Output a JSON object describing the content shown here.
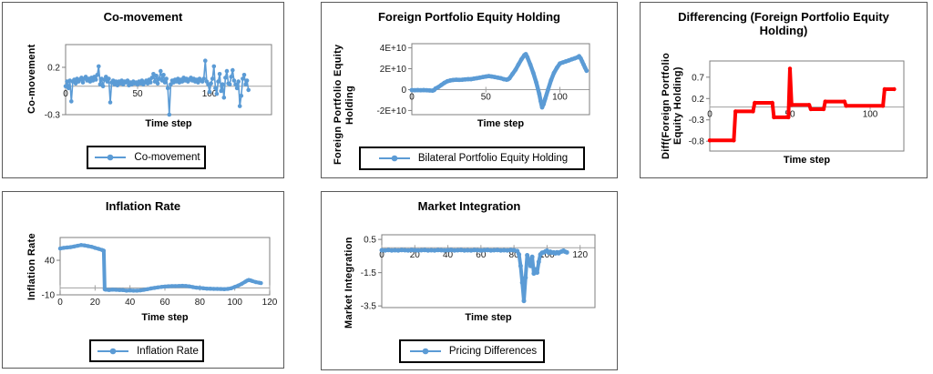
{
  "colors": {
    "series_blue": "#5b9bd5",
    "series_red": "#ff0000",
    "gridline": "#a0a0a0",
    "plot_border": "#7f7f7f",
    "tick_text": "#1a1a1a",
    "legend_border": "#000000"
  },
  "chart_data": [
    {
      "type": "line",
      "title": "Co-movement",
      "y_axis_title": "Co-movement",
      "x_axis_title": "Time step",
      "legend": "Co-movement",
      "series_color": "series_blue",
      "line_width": 1.6,
      "marker_r": 2.3,
      "xlim": [
        0,
        143
      ],
      "ylim": [
        -0.3,
        0.44
      ],
      "yticks": [
        {
          "v": 0.2,
          "label": "0.2"
        },
        {
          "v": -0.3,
          "label": "-0.3"
        }
      ],
      "xticks": [
        {
          "v": 0,
          "label": "0"
        },
        {
          "v": 50,
          "label": "50"
        },
        {
          "v": 100,
          "label": "100"
        }
      ],
      "x_step": 1,
      "y": [
        0.0,
        0.05,
        -0.02,
        0.06,
        -0.16,
        0.05,
        0.07,
        0.03,
        0.08,
        0.05,
        0.07,
        0.09,
        0.04,
        0.08,
        0.1,
        0.06,
        0.08,
        0.05,
        0.09,
        0.06,
        0.1,
        0.07,
        0.12,
        0.21,
        0.02,
        0.08,
        0.0,
        0.07,
        0.1,
        0.05,
        0.08,
        -0.17,
        0.04,
        0.06,
        0.02,
        0.05,
        0.01,
        0.05,
        0.03,
        0.06,
        0.02,
        0.05,
        0.04,
        0.06,
        0.01,
        0.04,
        0.02,
        0.05,
        0.03,
        0.04,
        0.02,
        0.05,
        0.03,
        0.06,
        0.02,
        0.04,
        0.06,
        0.03,
        0.07,
        0.04,
        0.09,
        0.13,
        0.05,
        0.11,
        0.03,
        0.08,
        0.16,
        0.06,
        0.12,
        0.04,
        0.08,
        -0.02,
        -0.3,
        0.02,
        0.06,
        0.04,
        0.07,
        0.05,
        0.08,
        0.04,
        0.07,
        0.05,
        0.09,
        0.06,
        0.08,
        0.05,
        0.07,
        0.09,
        0.06,
        0.08,
        0.05,
        0.07,
        0.04,
        0.08,
        0.06,
        0.05,
        0.08,
        0.27,
        0.05,
        0.02,
        -0.06,
        0.03,
        0.08,
        0.21,
        -0.02,
        -0.08,
        0.05,
        0.13,
        -0.05,
        0.02,
        -0.12,
        0.09,
        0.16,
        0.03,
        0.02,
        0.1,
        0.17,
        0.06,
        0.02,
        -0.02,
        0.05,
        -0.21,
        -0.1,
        0.08,
        0.12,
        0.02,
        0.06,
        -0.04
      ]
    },
    {
      "type": "line",
      "title": "Foreign Portfolio Equity Holding",
      "y_axis_title": "Foreign  Portfolio Equity Holding",
      "x_axis_title": "Time step",
      "legend": "Bilateral Portfolio Equity Holding",
      "series_color": "series_blue",
      "line_width": 4.5,
      "marker_r": 2.4,
      "xlim": [
        0,
        120
      ],
      "ylim": [
        -2.4,
        4.4
      ],
      "y_unit": "1E+10",
      "yticks": [
        {
          "v": 4,
          "label": "4E+10"
        },
        {
          "v": 2,
          "label": "2E+10"
        },
        {
          "v": 0,
          "label": "0"
        },
        {
          "v": -2,
          "label": "-2E+10"
        }
      ],
      "xticks": [
        {
          "v": 0,
          "label": "0"
        },
        {
          "v": 50,
          "label": "50"
        },
        {
          "v": 100,
          "label": "100"
        }
      ],
      "data": [
        [
          0,
          -0.05
        ],
        [
          2,
          -0.06
        ],
        [
          4,
          -0.05
        ],
        [
          6,
          -0.06
        ],
        [
          8,
          -0.05
        ],
        [
          10,
          -0.06
        ],
        [
          12,
          -0.08
        ],
        [
          14,
          -0.1
        ],
        [
          15,
          -0.05
        ],
        [
          16,
          0.1
        ],
        [
          18,
          0.25
        ],
        [
          20,
          0.45
        ],
        [
          22,
          0.65
        ],
        [
          24,
          0.8
        ],
        [
          26,
          0.88
        ],
        [
          28,
          0.92
        ],
        [
          30,
          0.95
        ],
        [
          32,
          0.93
        ],
        [
          34,
          0.95
        ],
        [
          36,
          0.97
        ],
        [
          38,
          1.0
        ],
        [
          40,
          1.0
        ],
        [
          42,
          1.05
        ],
        [
          44,
          1.1
        ],
        [
          46,
          1.15
        ],
        [
          48,
          1.2
        ],
        [
          50,
          1.25
        ],
        [
          52,
          1.3
        ],
        [
          54,
          1.25
        ],
        [
          56,
          1.2
        ],
        [
          58,
          1.15
        ],
        [
          60,
          1.1
        ],
        [
          62,
          1.0
        ],
        [
          64,
          0.95
        ],
        [
          65,
          0.98
        ],
        [
          66,
          1.1
        ],
        [
          68,
          1.5
        ],
        [
          70,
          1.9
        ],
        [
          72,
          2.4
        ],
        [
          74,
          2.9
        ],
        [
          76,
          3.3
        ],
        [
          77,
          3.4
        ],
        [
          78,
          3.1
        ],
        [
          80,
          2.4
        ],
        [
          82,
          1.6
        ],
        [
          84,
          0.7
        ],
        [
          86,
          -0.4
        ],
        [
          87,
          -1.1
        ],
        [
          88,
          -1.7
        ],
        [
          89,
          -1.4
        ],
        [
          90,
          -0.9
        ],
        [
          92,
          0.0
        ],
        [
          94,
          0.9
        ],
        [
          96,
          1.6
        ],
        [
          98,
          2.1
        ],
        [
          100,
          2.5
        ],
        [
          102,
          2.6
        ],
        [
          104,
          2.7
        ],
        [
          106,
          2.8
        ],
        [
          108,
          2.9
        ],
        [
          110,
          3.0
        ],
        [
          112,
          3.1
        ],
        [
          113,
          3.2
        ],
        [
          114,
          3.0
        ],
        [
          115,
          2.7
        ],
        [
          116,
          2.4
        ],
        [
          117,
          2.1
        ],
        [
          118,
          1.8
        ]
      ]
    },
    {
      "type": "line",
      "title": "Differencing (Foreign Portfolio Equity Holding)",
      "y_axis_title": "Diff(Foreign Portfolio Equity Holding)",
      "x_axis_title": "Time step",
      "legend": null,
      "series_color": "series_red",
      "line_width": 4,
      "marker_r": 2.2,
      "xlim": [
        0,
        121
      ],
      "ylim": [
        -1.03,
        1.08
      ],
      "yticks": [
        {
          "v": 0.7,
          "label": "0.7"
        },
        {
          "v": 0.2,
          "label": "0.2"
        },
        {
          "v": -0.3,
          "label": "-0.3"
        },
        {
          "v": -0.8,
          "label": "-0.8"
        }
      ],
      "xticks": [
        {
          "v": 0,
          "label": "0"
        },
        {
          "v": 50,
          "label": "50"
        },
        {
          "v": 100,
          "label": "100"
        }
      ],
      "data": [
        [
          0,
          -0.78
        ],
        [
          15,
          -0.78
        ],
        [
          16,
          -0.1
        ],
        [
          27,
          -0.1
        ],
        [
          28,
          0.1
        ],
        [
          39,
          0.1
        ],
        [
          40,
          -0.24
        ],
        [
          49,
          -0.24
        ],
        [
          50,
          0.9
        ],
        [
          51,
          0.05
        ],
        [
          62,
          0.05
        ],
        [
          63,
          -0.05
        ],
        [
          71,
          -0.05
        ],
        [
          72,
          0.13
        ],
        [
          84,
          0.13
        ],
        [
          85,
          0.03
        ],
        [
          108,
          0.03
        ],
        [
          109,
          0.42
        ],
        [
          115,
          0.42
        ]
      ]
    },
    {
      "type": "line",
      "title": "Inflation Rate",
      "y_axis_title": "Inflation Rate",
      "x_axis_title": "Time step",
      "legend": "Inflation Rate",
      "series_color": "series_blue",
      "line_width": 4,
      "marker_r": 2.2,
      "xlim": [
        0,
        120
      ],
      "ylim": [
        -10,
        73
      ],
      "yticks": [
        {
          "v": 40,
          "label": "40"
        },
        {
          "v": -10,
          "label": "-10"
        }
      ],
      "xticks": [
        {
          "v": 0,
          "label": "0"
        },
        {
          "v": 20,
          "label": "20"
        },
        {
          "v": 40,
          "label": "40"
        },
        {
          "v": 60,
          "label": "60"
        },
        {
          "v": 80,
          "label": "80"
        },
        {
          "v": 100,
          "label": "100"
        },
        {
          "v": 120,
          "label": "120"
        }
      ],
      "xlabel_position": "below",
      "data": [
        [
          0,
          57
        ],
        [
          2,
          58
        ],
        [
          4,
          58.5
        ],
        [
          6,
          59
        ],
        [
          8,
          60
        ],
        [
          10,
          61
        ],
        [
          12,
          62
        ],
        [
          14,
          61.5
        ],
        [
          16,
          60.5
        ],
        [
          18,
          59.5
        ],
        [
          20,
          58
        ],
        [
          22,
          56.5
        ],
        [
          24,
          55
        ],
        [
          25,
          54
        ],
        [
          25.5,
          -2
        ],
        [
          26,
          -2.5
        ],
        [
          28,
          -3
        ],
        [
          30,
          -2.5
        ],
        [
          32,
          -2.8
        ],
        [
          34,
          -3
        ],
        [
          36,
          -3.2
        ],
        [
          38,
          -4
        ],
        [
          40,
          -3.6
        ],
        [
          42,
          -4
        ],
        [
          44,
          -4
        ],
        [
          46,
          -3.6
        ],
        [
          48,
          -2.8
        ],
        [
          50,
          -1.8
        ],
        [
          52,
          -0.8
        ],
        [
          54,
          0
        ],
        [
          56,
          0.8
        ],
        [
          58,
          1.5
        ],
        [
          60,
          2
        ],
        [
          62,
          2.4
        ],
        [
          64,
          2.6
        ],
        [
          66,
          2.6
        ],
        [
          68,
          2.8
        ],
        [
          70,
          3
        ],
        [
          72,
          2.8
        ],
        [
          74,
          2.2
        ],
        [
          76,
          1.2
        ],
        [
          78,
          0.4
        ],
        [
          80,
          0
        ],
        [
          82,
          -0.5
        ],
        [
          84,
          -1
        ],
        [
          86,
          -1.2
        ],
        [
          88,
          -1.5
        ],
        [
          90,
          -1.5
        ],
        [
          92,
          -1.6
        ],
        [
          94,
          -1.8
        ],
        [
          96,
          -1.5
        ],
        [
          98,
          -0.5
        ],
        [
          100,
          1.5
        ],
        [
          102,
          3.5
        ],
        [
          104,
          6
        ],
        [
          106,
          9
        ],
        [
          107,
          10.5
        ],
        [
          108,
          11.5
        ],
        [
          109,
          11
        ],
        [
          110,
          10
        ],
        [
          112,
          8.5
        ],
        [
          114,
          7.5
        ],
        [
          115,
          7
        ]
      ]
    },
    {
      "type": "line",
      "title": "Market Integration",
      "y_axis_title": "Market Integration",
      "x_axis_title": "Time step",
      "legend": "Pricing Differences",
      "series_color": "series_blue",
      "line_width": 4,
      "marker_r": 2.5,
      "xlim": [
        0,
        129
      ],
      "ylim": [
        -3.6,
        0.78
      ],
      "yticks": [
        {
          "v": 0.5,
          "label": "0.5"
        },
        {
          "v": -1.5,
          "label": "-1.5"
        },
        {
          "v": -3.5,
          "label": "-3.5"
        }
      ],
      "xticks": [
        {
          "v": 0,
          "label": "0"
        },
        {
          "v": 20,
          "label": "20"
        },
        {
          "v": 40,
          "label": "40"
        },
        {
          "v": 60,
          "label": "60"
        },
        {
          "v": 80,
          "label": "80"
        },
        {
          "v": 100,
          "label": "100"
        },
        {
          "v": 120,
          "label": "120"
        }
      ],
      "data": [
        [
          0,
          -0.15
        ],
        [
          2,
          -0.16
        ],
        [
          4,
          -0.14
        ],
        [
          6,
          -0.16
        ],
        [
          8,
          -0.15
        ],
        [
          10,
          -0.16
        ],
        [
          12,
          -0.14
        ],
        [
          14,
          -0.15
        ],
        [
          16,
          -0.16
        ],
        [
          18,
          -0.14
        ],
        [
          20,
          -0.15
        ],
        [
          22,
          -0.16
        ],
        [
          24,
          -0.15
        ],
        [
          26,
          -0.14
        ],
        [
          28,
          -0.16
        ],
        [
          30,
          -0.15
        ],
        [
          32,
          -0.16
        ],
        [
          34,
          -0.14
        ],
        [
          36,
          -0.15
        ],
        [
          38,
          -0.16
        ],
        [
          40,
          -0.15
        ],
        [
          42,
          -0.14
        ],
        [
          44,
          -0.16
        ],
        [
          46,
          -0.15
        ],
        [
          48,
          -0.14
        ],
        [
          50,
          -0.16
        ],
        [
          52,
          -0.15
        ],
        [
          54,
          -0.16
        ],
        [
          56,
          -0.14
        ],
        [
          58,
          -0.15
        ],
        [
          60,
          -0.16
        ],
        [
          62,
          -0.15
        ],
        [
          64,
          -0.14
        ],
        [
          66,
          -0.16
        ],
        [
          68,
          -0.15
        ],
        [
          70,
          -0.14
        ],
        [
          72,
          -0.16
        ],
        [
          74,
          -0.15
        ],
        [
          76,
          -0.16
        ],
        [
          78,
          -0.14
        ],
        [
          80,
          -0.15
        ],
        [
          82,
          -0.2
        ],
        [
          83,
          -0.4
        ],
        [
          84,
          -1.1
        ],
        [
          85,
          -2.1
        ],
        [
          86,
          -3.2
        ],
        [
          87,
          -1.8
        ],
        [
          88,
          -0.45
        ],
        [
          89,
          -0.75
        ],
        [
          90,
          -1.1
        ],
        [
          91,
          -0.55
        ],
        [
          92,
          -1.55
        ],
        [
          93,
          -1.3
        ],
        [
          94,
          -1.5
        ],
        [
          95,
          -0.85
        ],
        [
          96,
          -0.4
        ],
        [
          97,
          -0.3
        ],
        [
          98,
          -0.28
        ],
        [
          99,
          -0.22
        ],
        [
          100,
          -0.18
        ],
        [
          101,
          -0.3
        ],
        [
          102,
          -0.24
        ],
        [
          103,
          -0.3
        ],
        [
          104,
          -0.28
        ],
        [
          105,
          -0.34
        ],
        [
          106,
          -0.27
        ],
        [
          107,
          -0.33
        ],
        [
          108,
          -0.26
        ],
        [
          109,
          -0.22
        ],
        [
          110,
          -0.18
        ],
        [
          111,
          -0.24
        ],
        [
          112,
          -0.28
        ]
      ]
    }
  ]
}
